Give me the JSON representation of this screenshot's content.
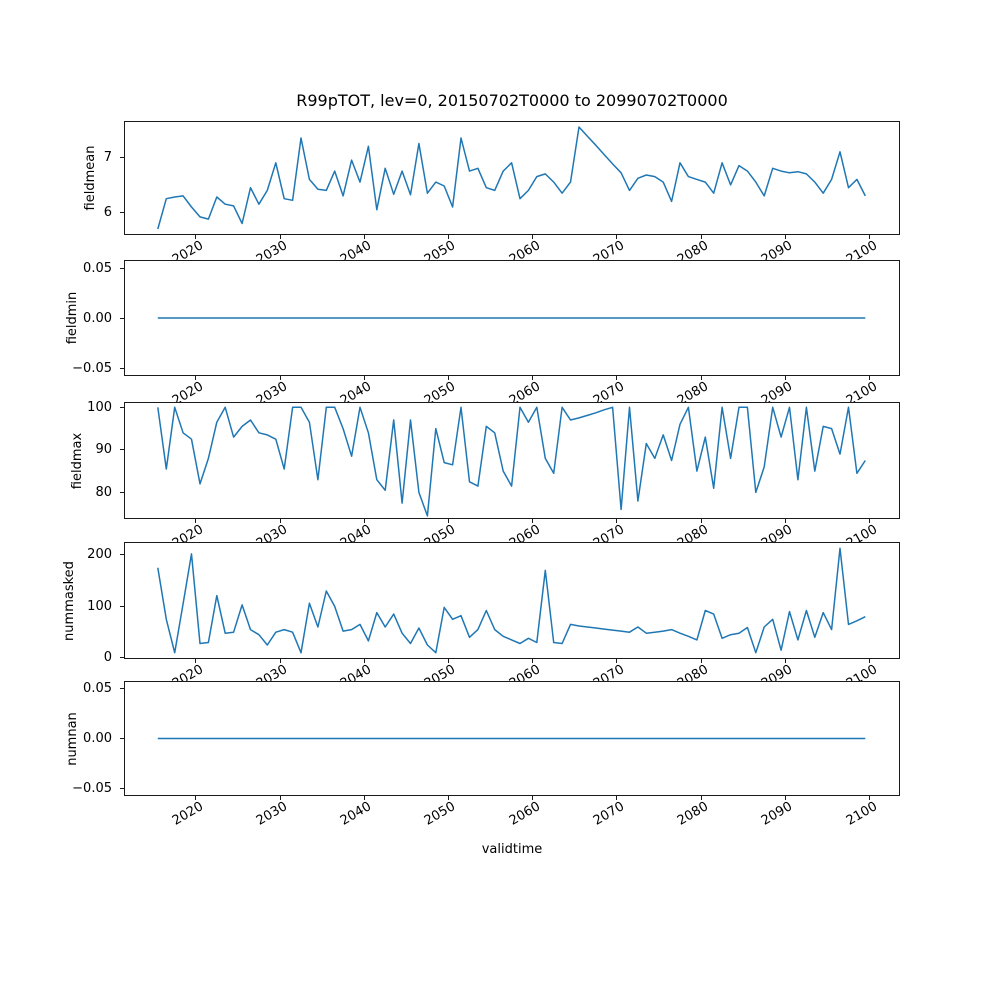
{
  "main": {
    "title": "R99pTOT, lev=0, 20150702T0000 to 20990702T0000",
    "xlabel": "validtime"
  },
  "chart_data": {
    "type": "line",
    "title": "R99pTOT, lev=0, 20150702T0000 to 20990702T0000",
    "line_color": "#1f77b4",
    "background_color": "#ffffff",
    "legend": "none",
    "grid": false,
    "x_axis": {
      "label": "validtime",
      "start_year": 2015.5,
      "step_years": 1,
      "count": 85,
      "tick_values": [
        2020,
        2030,
        2040,
        2050,
        2060,
        2070,
        2080,
        2090,
        2100
      ],
      "tick_labels": [
        "2020",
        "2030",
        "2040",
        "2050",
        "2060",
        "2070",
        "2080",
        "2090",
        "2100"
      ],
      "xlim": [
        2011.6,
        2103.5
      ],
      "tick_rotation_deg": 30
    },
    "subplots": [
      {
        "name": "fieldmean",
        "ylabel": "fieldmean",
        "ylim": [
          5.61,
          7.64
        ],
        "ytick_values": [
          6,
          7
        ],
        "ytick_labels": [
          "6",
          "7"
        ],
        "values": [
          5.7,
          6.25,
          6.28,
          6.3,
          6.1,
          5.92,
          5.88,
          6.28,
          6.15,
          6.12,
          5.8,
          6.45,
          6.15,
          6.4,
          6.9,
          6.25,
          6.22,
          7.35,
          6.6,
          6.42,
          6.4,
          6.75,
          6.3,
          6.95,
          6.55,
          7.2,
          6.05,
          6.8,
          6.33,
          6.75,
          6.32,
          7.25,
          6.35,
          6.55,
          6.48,
          6.1,
          7.35,
          6.75,
          6.8,
          6.45,
          6.4,
          6.75,
          6.9,
          6.25,
          6.4,
          6.65,
          6.7,
          6.55,
          6.35,
          6.55,
          7.55,
          7.38,
          7.22,
          7.05,
          6.88,
          6.72,
          6.4,
          6.62,
          6.68,
          6.65,
          6.55,
          6.2,
          6.9,
          6.65,
          6.6,
          6.55,
          6.35,
          6.9,
          6.5,
          6.85,
          6.75,
          6.55,
          6.3,
          6.8,
          6.75,
          6.72,
          6.74,
          6.7,
          6.55,
          6.35,
          6.6,
          7.1,
          6.45,
          6.6,
          6.3
        ]
      },
      {
        "name": "fieldmin",
        "ylabel": "fieldmin",
        "ylim": [
          -0.057,
          0.057
        ],
        "ytick_values": [
          -0.05,
          0.0,
          0.05
        ],
        "ytick_labels": [
          "−0.05",
          "0.00",
          "0.05"
        ],
        "values": [
          0,
          0,
          0,
          0,
          0,
          0,
          0,
          0,
          0,
          0,
          0,
          0,
          0,
          0,
          0,
          0,
          0,
          0,
          0,
          0,
          0,
          0,
          0,
          0,
          0,
          0,
          0,
          0,
          0,
          0,
          0,
          0,
          0,
          0,
          0,
          0,
          0,
          0,
          0,
          0,
          0,
          0,
          0,
          0,
          0,
          0,
          0,
          0,
          0,
          0,
          0,
          0,
          0,
          0,
          0,
          0,
          0,
          0,
          0,
          0,
          0,
          0,
          0,
          0,
          0,
          0,
          0,
          0,
          0,
          0,
          0,
          0,
          0,
          0,
          0,
          0,
          0,
          0,
          0,
          0,
          0,
          0,
          0,
          0,
          0
        ]
      },
      {
        "name": "fieldmax",
        "ylabel": "fieldmax",
        "ylim": [
          74.0,
          101.0
        ],
        "ytick_values": [
          80,
          90,
          100
        ],
        "ytick_labels": [
          "80",
          "90",
          "100"
        ],
        "values": [
          100,
          85.5,
          100,
          94,
          92.5,
          82,
          88,
          96.5,
          100,
          93,
          95.5,
          97,
          94,
          93.5,
          92.5,
          85.5,
          100,
          100,
          96.5,
          83,
          100,
          100,
          95,
          88.5,
          100,
          94,
          83,
          80.5,
          97,
          77.5,
          97,
          80,
          74.5,
          95,
          87,
          86.5,
          100,
          82.5,
          81.5,
          95.5,
          94,
          85,
          81.5,
          100,
          96.5,
          100,
          88,
          84.5,
          100,
          97,
          97.5,
          98.1,
          98.7,
          99.4,
          100,
          76,
          100,
          78,
          91.5,
          88,
          93.5,
          87.5,
          96,
          100,
          85,
          93,
          81,
          100,
          88,
          100,
          100,
          80,
          86,
          100,
          93,
          100,
          83,
          100,
          85,
          95.5,
          95,
          89,
          100,
          84.5,
          87.5
        ]
      },
      {
        "name": "nummasked",
        "ylabel": "nummasked",
        "ylim": [
          -0.2,
          223.2
        ],
        "ytick_values": [
          0,
          100,
          200
        ],
        "ytick_labels": [
          "0",
          "100",
          "200"
        ],
        "values": [
          175,
          75,
          10,
          105,
          202,
          28,
          30,
          121,
          48,
          50,
          103,
          55,
          45,
          25,
          50,
          55,
          50,
          10,
          106,
          60,
          130,
          100,
          52,
          55,
          65,
          33,
          88,
          60,
          85,
          48,
          28,
          58,
          25,
          10,
          98,
          75,
          82,
          40,
          55,
          92,
          55,
          42,
          35,
          28,
          38,
          30,
          170,
          30,
          28,
          65,
          62,
          60,
          58,
          56,
          54,
          52,
          50,
          60,
          48,
          50,
          52,
          55,
          48,
          42,
          35,
          92,
          85,
          38,
          45,
          48,
          59,
          10,
          60,
          75,
          15,
          90,
          35,
          92,
          40,
          88,
          55,
          213,
          65,
          72,
          80
        ]
      },
      {
        "name": "numnan",
        "ylabel": "numnan",
        "ylim": [
          -0.057,
          0.057
        ],
        "ytick_values": [
          -0.05,
          0.0,
          0.05
        ],
        "ytick_labels": [
          "−0.05",
          "0.00",
          "0.05"
        ],
        "values": [
          0,
          0,
          0,
          0,
          0,
          0,
          0,
          0,
          0,
          0,
          0,
          0,
          0,
          0,
          0,
          0,
          0,
          0,
          0,
          0,
          0,
          0,
          0,
          0,
          0,
          0,
          0,
          0,
          0,
          0,
          0,
          0,
          0,
          0,
          0,
          0,
          0,
          0,
          0,
          0,
          0,
          0,
          0,
          0,
          0,
          0,
          0,
          0,
          0,
          0,
          0,
          0,
          0,
          0,
          0,
          0,
          0,
          0,
          0,
          0,
          0,
          0,
          0,
          0,
          0,
          0,
          0,
          0,
          0,
          0,
          0,
          0,
          0,
          0,
          0,
          0,
          0,
          0,
          0,
          0,
          0,
          0,
          0,
          0,
          0
        ]
      }
    ]
  }
}
